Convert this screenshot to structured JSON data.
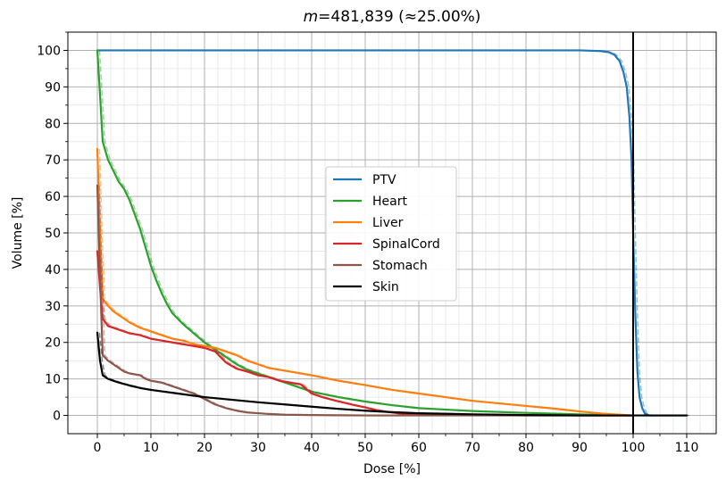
{
  "chart_data": {
    "type": "line",
    "title": "m=481,839   (≈25.00%)",
    "title_var": "m",
    "title_rest": "=481,839   (≈25.00%)",
    "xlabel": "Dose [%]",
    "ylabel": "Volume [%]",
    "xlim": [
      -5.5,
      115.5
    ],
    "ylim": [
      -5,
      105
    ],
    "xticks": [
      0,
      10,
      20,
      30,
      40,
      50,
      60,
      70,
      80,
      90,
      100,
      110
    ],
    "yticks": [
      0,
      10,
      20,
      30,
      40,
      50,
      60,
      70,
      80,
      90,
      100
    ],
    "grid": true,
    "legend_position": "center",
    "vline": {
      "x": 100,
      "color": "#000000"
    },
    "series": [
      {
        "name": "PTV",
        "color": "#1f77b4",
        "x": [
          0,
          10,
          20,
          40,
          60,
          80,
          90,
          94,
          95.5,
          96.5,
          97.5,
          98.2,
          98.8,
          99.3,
          99.7,
          100,
          100.4,
          100.8,
          101.2,
          101.7,
          102.2,
          103,
          110
        ],
        "y": [
          100,
          100,
          100,
          100,
          100,
          100,
          100,
          99.8,
          99.5,
          98.8,
          97,
          94,
          90,
          82,
          70,
          50,
          28,
          12,
          5,
          2,
          0.5,
          0,
          0
        ]
      },
      {
        "name": "Heart",
        "color": "#2ca02c",
        "x": [
          0,
          0.5,
          1,
          2,
          3,
          4,
          5,
          6,
          7,
          8,
          9,
          10,
          11,
          12,
          13,
          14,
          15,
          16,
          18,
          20,
          22,
          24,
          26,
          28,
          30,
          32,
          34,
          36,
          38,
          40,
          45,
          50,
          55,
          60,
          70,
          80,
          90,
          95,
          100
        ],
        "y": [
          100,
          88,
          75,
          70,
          67,
          64,
          62,
          59,
          55,
          51,
          46,
          41,
          37,
          33.5,
          30.5,
          28,
          26.5,
          25,
          22.5,
          20,
          18,
          16,
          14,
          12.5,
          11.5,
          10.5,
          9.5,
          8.5,
          7.5,
          6.5,
          5,
          3.8,
          2.8,
          2,
          1.2,
          0.7,
          0.3,
          0.1,
          0
        ]
      },
      {
        "name": "Liver",
        "color": "#ff7f0e",
        "x": [
          0,
          0.5,
          1,
          2,
          3,
          4,
          5,
          6,
          8,
          10,
          12,
          14,
          16,
          18,
          20,
          22,
          24,
          26,
          28,
          30,
          32,
          34,
          36,
          38,
          40,
          45,
          50,
          55,
          60,
          65,
          70,
          75,
          80,
          85,
          90,
          95,
          100
        ],
        "y": [
          73,
          50,
          32,
          30,
          28.5,
          27.5,
          26.5,
          25.5,
          24,
          23,
          22,
          21,
          20.5,
          19.5,
          19,
          18.5,
          17.5,
          16.5,
          15,
          14,
          13,
          12.5,
          12,
          11.5,
          11,
          9.5,
          8.3,
          7,
          6,
          5,
          4,
          3.3,
          2.6,
          1.9,
          1.1,
          0.4,
          0
        ]
      },
      {
        "name": "SpinalCord",
        "color": "#d62728",
        "x": [
          0,
          0.5,
          1,
          2,
          4,
          6,
          8,
          10,
          12,
          14,
          16,
          18,
          20,
          22,
          24,
          26,
          28,
          30,
          32,
          34,
          36,
          38,
          40,
          42,
          44,
          46,
          48,
          50,
          52,
          54,
          56,
          60,
          70,
          80,
          90,
          100
        ],
        "y": [
          45,
          35,
          26.5,
          24.5,
          23.5,
          22.5,
          22,
          21,
          20.5,
          20,
          19.5,
          19,
          18.5,
          17.5,
          14.5,
          12.8,
          12,
          11,
          10.5,
          9.5,
          9,
          8.5,
          6,
          5,
          4.2,
          3.5,
          2.8,
          2.2,
          1.5,
          1,
          0.6,
          0.3,
          0.1,
          0,
          0,
          0
        ]
      },
      {
        "name": "Stomach",
        "color": "#8c564b",
        "x": [
          0,
          0.5,
          1,
          2,
          3,
          4,
          5,
          6,
          8,
          9,
          10,
          12,
          14,
          16,
          18,
          20,
          22,
          24,
          26,
          28,
          30,
          32,
          35,
          40,
          45,
          50,
          55,
          60,
          70,
          80,
          100
        ],
        "y": [
          63,
          38,
          16.5,
          15,
          14,
          13,
          12,
          11.5,
          11,
          10,
          9.5,
          9,
          8,
          7,
          6,
          4.5,
          3,
          2,
          1.3,
          0.8,
          0.6,
          0.4,
          0.2,
          0.1,
          0.05,
          0,
          0,
          0,
          0,
          0,
          0
        ]
      },
      {
        "name": "Skin",
        "color": "#000000",
        "x": [
          0,
          0.5,
          1,
          2,
          4,
          6,
          8,
          10,
          12,
          15,
          20,
          25,
          30,
          35,
          40,
          45,
          50,
          55,
          60,
          70,
          80,
          90,
          100,
          110
        ],
        "y": [
          22.7,
          15,
          11,
          10,
          9,
          8.2,
          7.5,
          7,
          6.6,
          6,
          5,
          4.3,
          3.6,
          3,
          2.4,
          1.8,
          1.3,
          0.9,
          0.6,
          0.3,
          0.1,
          0,
          0,
          0
        ]
      }
    ]
  }
}
